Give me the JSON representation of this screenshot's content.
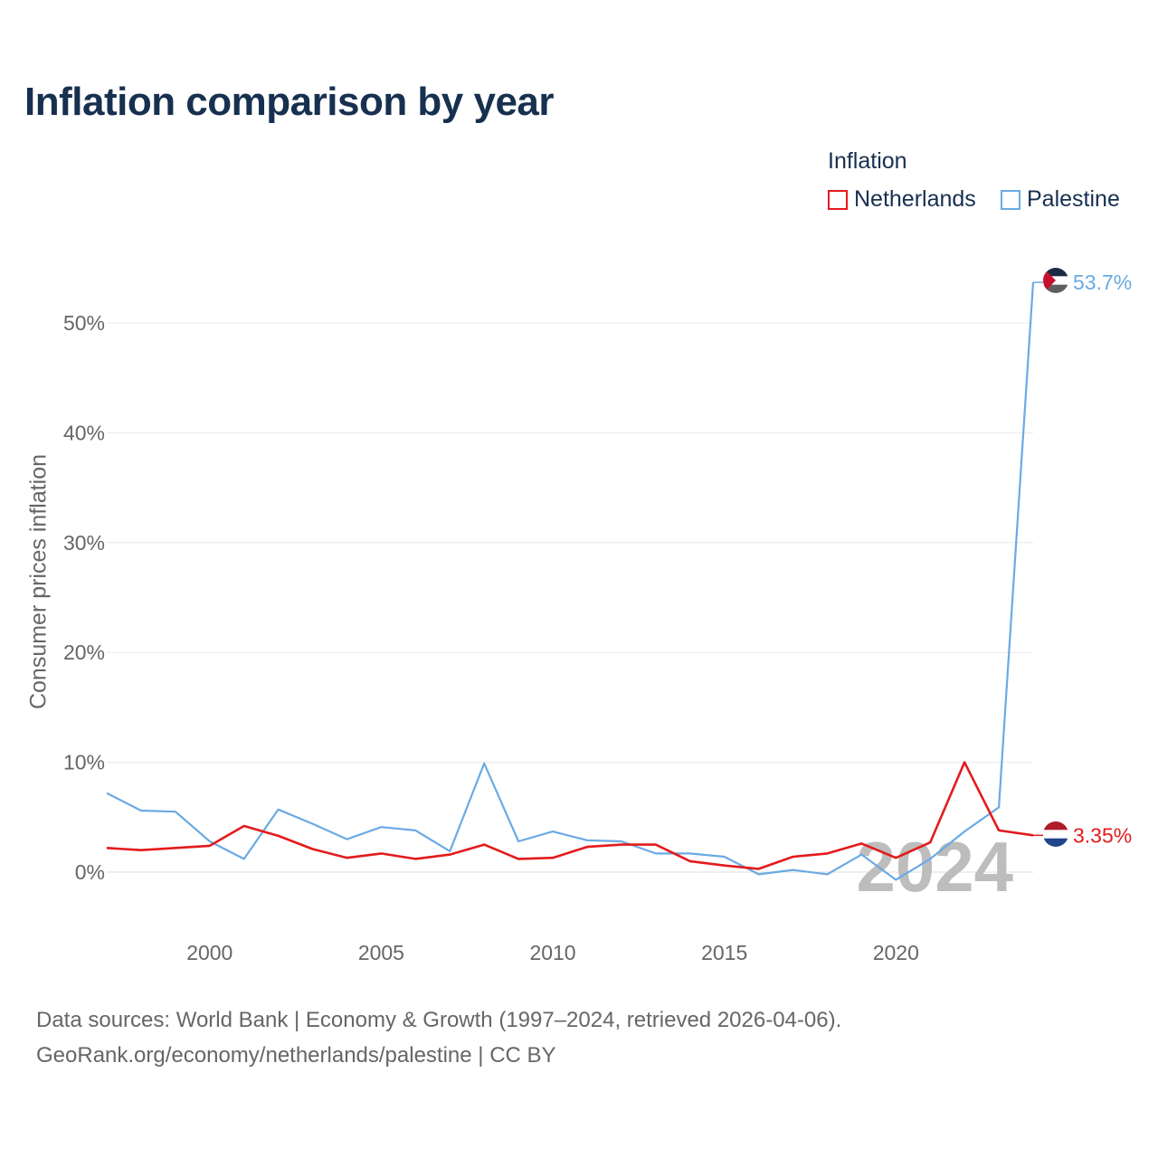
{
  "title": "Inflation comparison by year",
  "legend": {
    "title": "Inflation",
    "items": [
      {
        "label": "Netherlands",
        "color": "#e41a1c"
      },
      {
        "label": "Palestine",
        "color": "#6aaae4"
      }
    ]
  },
  "watermark_year": "2024",
  "footer": {
    "line1": "Data sources: World Bank | Economy & Growth (1997–2024, retrieved 2026-04-06).",
    "line2": "GeoRank.org/economy/netherlands/palestine | CC BY"
  },
  "chart_data": {
    "type": "line",
    "title": "Inflation comparison by year",
    "xlabel": "",
    "ylabel": "Consumer prices inflation",
    "xlim": [
      1997,
      2024
    ],
    "ylim": [
      -4,
      55
    ],
    "x_ticks": [
      2000,
      2005,
      2010,
      2015,
      2020
    ],
    "y_ticks": [
      0,
      10,
      20,
      30,
      40,
      50
    ],
    "y_tick_labels": [
      "0%",
      "10%",
      "20%",
      "30%",
      "40%",
      "50%"
    ],
    "grid": true,
    "legend_position": "top-right",
    "x": [
      1997,
      1998,
      1999,
      2000,
      2001,
      2002,
      2003,
      2004,
      2005,
      2006,
      2007,
      2008,
      2009,
      2010,
      2011,
      2012,
      2013,
      2014,
      2015,
      2016,
      2017,
      2018,
      2019,
      2020,
      2021,
      2022,
      2023,
      2024
    ],
    "series": [
      {
        "name": "Netherlands",
        "color": "#e41a1c",
        "end_label": "3.35%",
        "values": [
          2.2,
          2.0,
          2.2,
          2.4,
          4.2,
          3.3,
          2.1,
          1.3,
          1.7,
          1.2,
          1.6,
          2.5,
          1.2,
          1.3,
          2.3,
          2.5,
          2.5,
          1.0,
          0.6,
          0.3,
          1.4,
          1.7,
          2.6,
          1.3,
          2.7,
          10.0,
          3.8,
          3.35
        ]
      },
      {
        "name": "Palestine",
        "color": "#6aaae4",
        "end_label": "53.7%",
        "values": [
          7.2,
          5.6,
          5.5,
          2.8,
          1.2,
          5.7,
          4.4,
          3.0,
          4.1,
          3.8,
          1.9,
          9.9,
          2.8,
          3.7,
          2.9,
          2.8,
          1.7,
          1.7,
          1.4,
          -0.2,
          0.2,
          -0.2,
          1.6,
          -0.7,
          1.2,
          3.7,
          5.9,
          53.7
        ]
      }
    ]
  }
}
